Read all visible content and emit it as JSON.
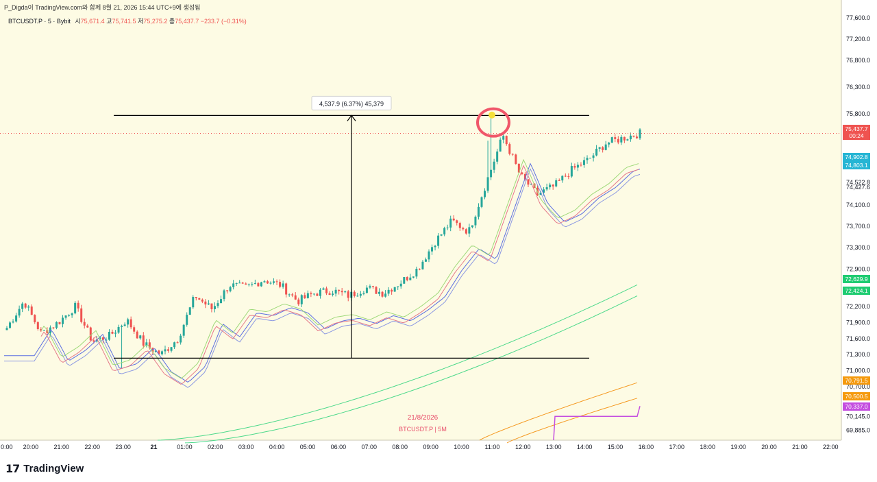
{
  "credit": "P_Digda이 TradingView.com와 함께 8월 21, 2026 15:44 UTC+9에 생성됨",
  "legend": {
    "symbol": "BTCUSDT.P · 5 · Bybit",
    "open_label": "시",
    "open": "75,671.4",
    "high_label": "고",
    "high": "75,741.5",
    "low_label": "저",
    "low": "75,275.2",
    "close_label": "종",
    "close": "75,437.7",
    "change": "−233.7 (−0.31%)"
  },
  "watermark": {
    "date": "21/8/2026",
    "symbol": "BTCUSDT.P | 5M"
  },
  "measure_label": "4,537.9 (6.37%) 45,379",
  "brand": "TradingView",
  "colors": {
    "background": "#fdfbe4",
    "up": "#26a69a",
    "down": "#ef5350",
    "blue_band": "#5b6ee1",
    "green_band": "#4cd98a",
    "orange_band": "#f59a23",
    "violet_line": "#c44ee0",
    "highlight_circle": "#f0576a",
    "highlight_dot": "#f5e03a"
  },
  "chart_data": {
    "type": "candlestick",
    "title": "",
    "x_ticks": [
      "0:00",
      "20:00",
      "21:00",
      "22:00",
      "23:00",
      "21",
      "01:00",
      "02:00",
      "03:00",
      "04:00",
      "05:00",
      "06:00",
      "07:00",
      "08:00",
      "09:00",
      "10:00",
      "11:00",
      "12:00",
      "13:00",
      "14:00",
      "15:00",
      "16:00",
      "17:00",
      "18:00",
      "19:00",
      "20:00",
      "21:00",
      "22:00"
    ],
    "y_ticks": [
      "77,600.0",
      "77,200.0",
      "76,800.0",
      "76,300.0",
      "75,800.0",
      "74,522.8",
      "74,427.6",
      "74,100.0",
      "73,700.0",
      "73,300.0",
      "72,900.0",
      "72,200.0",
      "71,900.0",
      "71,600.0",
      "71,300.0",
      "71,000.0",
      "70,700.0",
      "70,145.0",
      "69,885.0"
    ],
    "y_range": [
      69700,
      77700
    ],
    "price_badges": [
      {
        "label": "75,437.7",
        "sub": "00:24",
        "value": 75437.7,
        "color": "#ef5350"
      },
      {
        "label": "74,902.8",
        "value": 74902.8,
        "color": "#26b5d4"
      },
      {
        "label": "74,803.1",
        "value": 74803.1,
        "color": "#26b5d4"
      },
      {
        "label": "72,629.9",
        "value": 72629.9,
        "color": "#1fcc72"
      },
      {
        "label": "72,424.1",
        "value": 72424.1,
        "color": "#1fcc72"
      },
      {
        "label": "70,791.5",
        "value": 70791.5,
        "color": "#f59a0e"
      },
      {
        "label": "70,500.5",
        "value": 70500.5,
        "color": "#f59a0e"
      },
      {
        "label": "70,337.0",
        "value": 70337.0,
        "color": "#c44ee0"
      }
    ],
    "candle_closes_anchor": [
      [
        0,
        71800
      ],
      [
        1,
        72300
      ],
      [
        2,
        71700
      ],
      [
        3,
        71900
      ],
      [
        4,
        72200
      ],
      [
        5,
        71550
      ],
      [
        6,
        71650
      ],
      [
        7,
        71950
      ],
      [
        8,
        71500
      ],
      [
        9,
        71300
      ],
      [
        10,
        71600
      ],
      [
        11,
        72400
      ],
      [
        12,
        72150
      ],
      [
        13,
        72600
      ],
      [
        14,
        72550
      ],
      [
        15,
        72700
      ],
      [
        16,
        72600
      ],
      [
        17,
        72300
      ],
      [
        18,
        72450
      ],
      [
        19,
        72500
      ],
      [
        20,
        72400
      ],
      [
        21,
        72550
      ],
      [
        22,
        72450
      ],
      [
        23,
        72650
      ],
      [
        24,
        72900
      ],
      [
        25,
        73400
      ],
      [
        26,
        73800
      ],
      [
        27,
        73600
      ],
      [
        28,
        74500
      ],
      [
        29,
        75400
      ],
      [
        30,
        74650
      ],
      [
        31,
        74300
      ],
      [
        32,
        74450
      ],
      [
        33,
        74750
      ],
      [
        34,
        74950
      ],
      [
        35,
        75250
      ],
      [
        36,
        75350
      ],
      [
        37,
        75437.7
      ]
    ],
    "measure": {
      "top_price": 75772,
      "bottom_price": 71234
    }
  }
}
